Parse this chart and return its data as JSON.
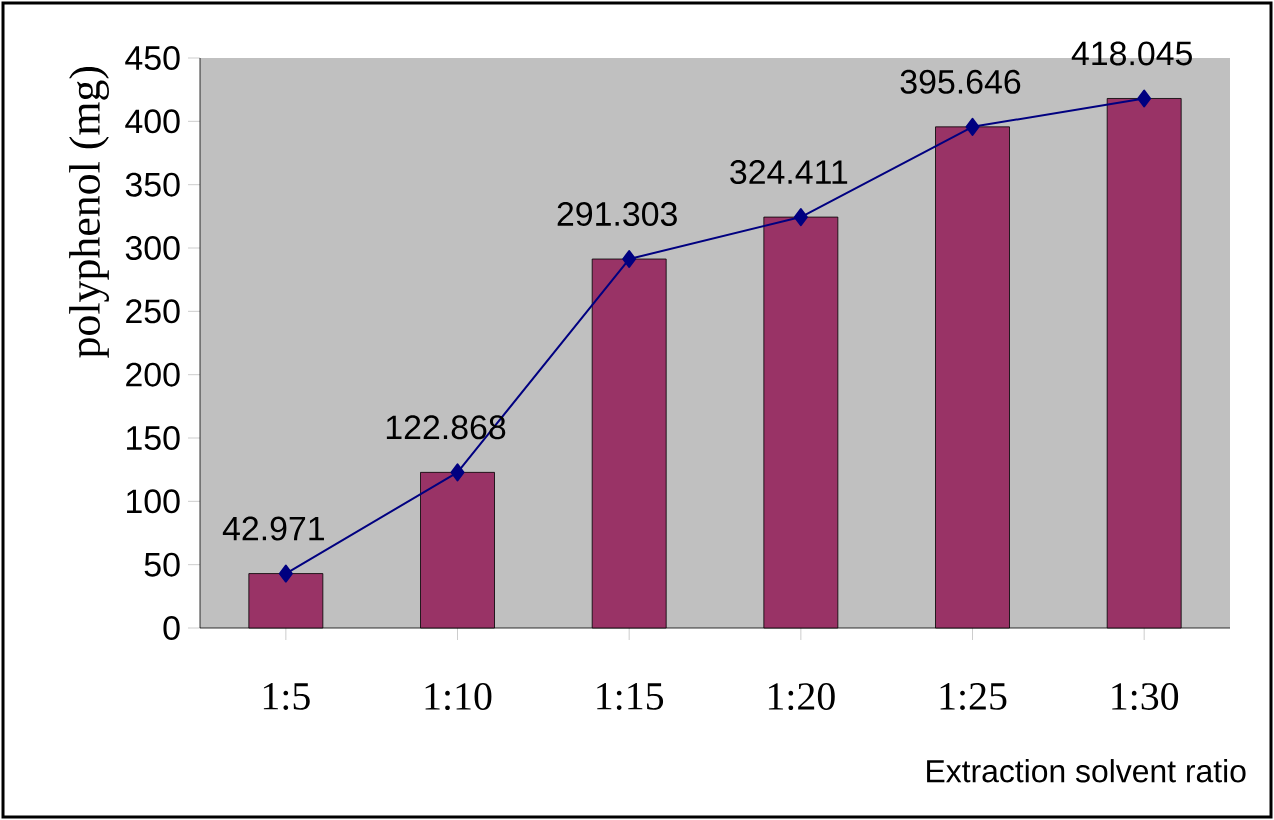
{
  "chart_data": {
    "type": "bar",
    "xlabel": "Extraction solvent ratio",
    "ylabel": "polyphenol (mg)",
    "categories": [
      "1:5",
      "1:10",
      "1:15",
      "1:20",
      "1:25",
      "1:30"
    ],
    "series": [
      {
        "color": "#993366",
        "values": [
          42.971,
          122.868,
          291.303,
          324.411,
          395.646,
          418.045
        ]
      },
      {
        "type": "line",
        "color": "#000080",
        "values": [
          42.971,
          122.868,
          291.303,
          324.411,
          395.646,
          418.045
        ],
        "value_labels": [
          "42.971",
          "122.868",
          "291.303",
          "324.411",
          "395.646",
          "418.045"
        ]
      }
    ],
    "ylim": [
      0,
      450
    ],
    "yticks": [
      0,
      50,
      100,
      150,
      200,
      250,
      300,
      350,
      400,
      450
    ],
    "marker": "diamond"
  }
}
